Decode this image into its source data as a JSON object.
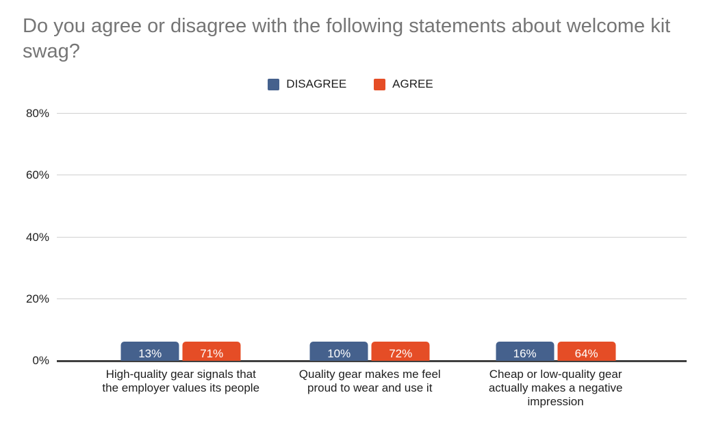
{
  "chart_data": {
    "type": "bar",
    "title": "Do you agree or disagree with the following statements about welcome kit swag?",
    "categories": [
      "High-quality gear signals that the employer values its people",
      "Quality gear makes me feel proud to wear and use it",
      "Cheap or low-quality gear actually makes a negative impression"
    ],
    "series": [
      {
        "name": "DISAGREE",
        "color": "#45618D",
        "values": [
          13,
          10,
          16
        ]
      },
      {
        "name": "AGREE",
        "color": "#E54D26",
        "values": [
          71,
          72,
          64
        ]
      }
    ],
    "data_labels": [
      [
        "13%",
        "10%",
        "16%"
      ],
      [
        "71%",
        "72%",
        "64%"
      ]
    ],
    "yticks": [
      0,
      20,
      40,
      60,
      80
    ],
    "ytick_labels": [
      "0%",
      "20%",
      "40%",
      "60%",
      "80%"
    ],
    "ylim": [
      0,
      80
    ],
    "grid": true,
    "legend_position": "top",
    "colors": {
      "title": "#757575",
      "axis_text": "#1e1e1e",
      "gridline": "#d0d0d0",
      "baseline": "#3f3f3f",
      "bar_label": "#ffffff",
      "background": "#ffffff"
    }
  }
}
